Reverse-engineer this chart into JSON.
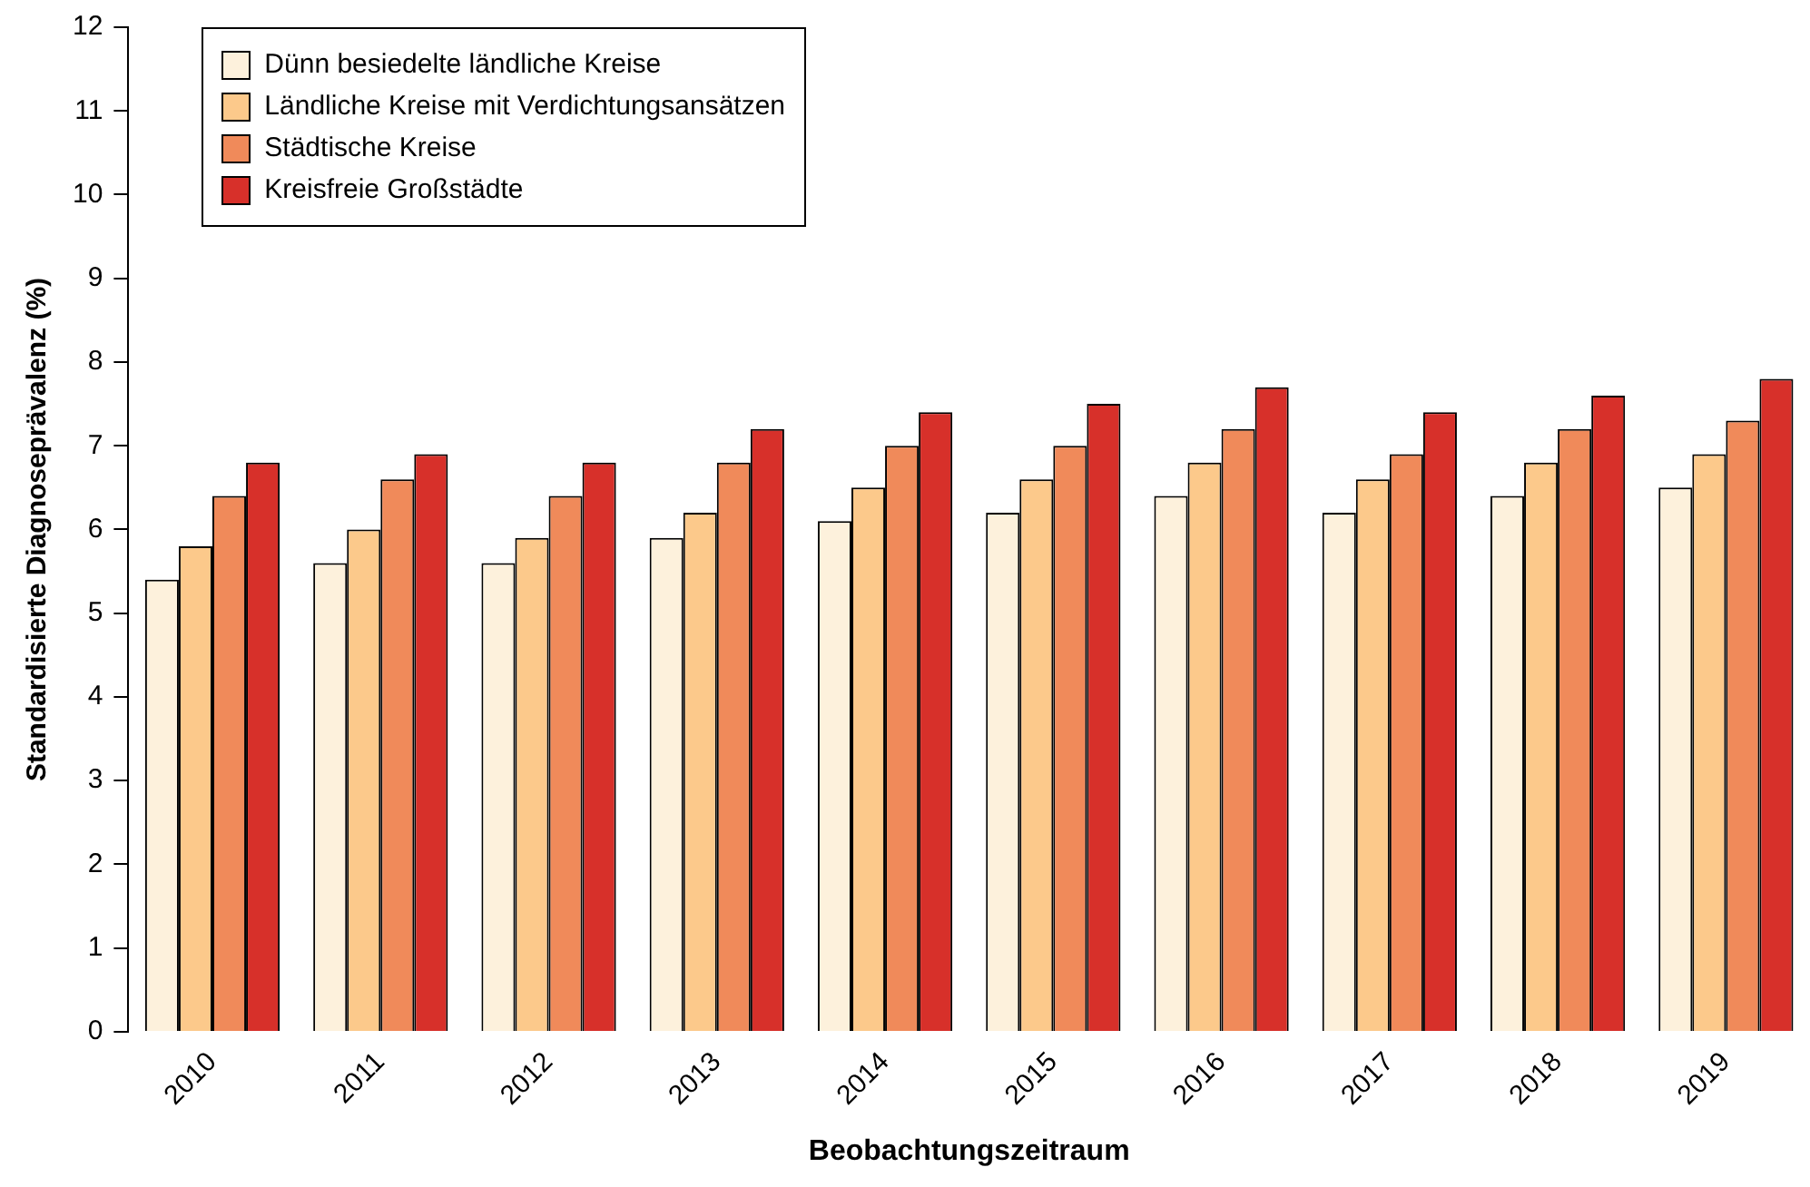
{
  "chart_data": {
    "type": "bar",
    "xlabel": "Beobachtungszeitraum",
    "ylabel": "Standardisierte Diagnoseprävalenz (%)",
    "categories": [
      "2010",
      "2011",
      "2012",
      "2013",
      "2014",
      "2015",
      "2016",
      "2017",
      "2018",
      "2019"
    ],
    "series": [
      {
        "name": "Dünn besiedelte ländliche Kreise",
        "color": "#fdf1dc",
        "values": [
          5.4,
          5.6,
          5.6,
          5.9,
          6.1,
          6.2,
          6.4,
          6.2,
          6.4,
          6.5
        ]
      },
      {
        "name": "Ländliche Kreise mit Verdichtungsansätzen",
        "color": "#fcc98b",
        "values": [
          5.8,
          6.0,
          5.9,
          6.2,
          6.5,
          6.6,
          6.8,
          6.6,
          6.8,
          6.9
        ]
      },
      {
        "name": "Städtische Kreise",
        "color": "#f08a5a",
        "values": [
          6.4,
          6.6,
          6.4,
          6.8,
          7.0,
          7.0,
          7.2,
          6.9,
          7.2,
          7.3
        ]
      },
      {
        "name": "Kreisfreie Großstädte",
        "color": "#d7302a",
        "values": [
          6.8,
          6.9,
          6.8,
          7.2,
          7.4,
          7.5,
          7.7,
          7.4,
          7.6,
          7.8
        ]
      }
    ],
    "ylim": [
      0,
      12
    ],
    "yticks": [
      0,
      1,
      2,
      3,
      4,
      5,
      6,
      7,
      8,
      9,
      10,
      11,
      12
    ],
    "grid": false,
    "legend": "top left"
  }
}
